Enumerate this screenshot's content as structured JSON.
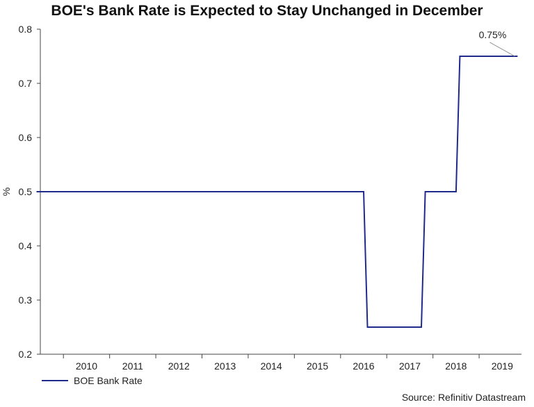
{
  "chart_data": {
    "type": "line",
    "title": "BOE's Bank Rate is Expected to Stay Unchanged in December",
    "xlabel": "",
    "ylabel": "%",
    "ylim": [
      0.2,
      0.8
    ],
    "yticks": [
      "0.2",
      "0.3",
      "0.4",
      "0.5",
      "0.6",
      "0.7",
      "0.8"
    ],
    "xticks": [
      "2010",
      "2011",
      "2012",
      "2013",
      "2014",
      "2015",
      "2016",
      "2017",
      "2018",
      "2019"
    ],
    "grid": false,
    "legend_position": "bottom-left",
    "series": [
      {
        "name": "BOE Bank Rate",
        "color": "#1f2a8a",
        "points": [
          [
            "2009-06",
            0.5
          ],
          [
            "2016-07",
            0.5
          ],
          [
            "2016-08",
            0.25
          ],
          [
            "2017-10",
            0.25
          ],
          [
            "2017-11",
            0.5
          ],
          [
            "2018-07",
            0.5
          ],
          [
            "2018-08",
            0.75
          ],
          [
            "2019-11",
            0.75
          ]
        ]
      }
    ],
    "annotations": [
      {
        "text": "0.75%",
        "x": "2019-11",
        "y": 0.75
      }
    ],
    "source": "Source: Refinitiv Datastream"
  }
}
